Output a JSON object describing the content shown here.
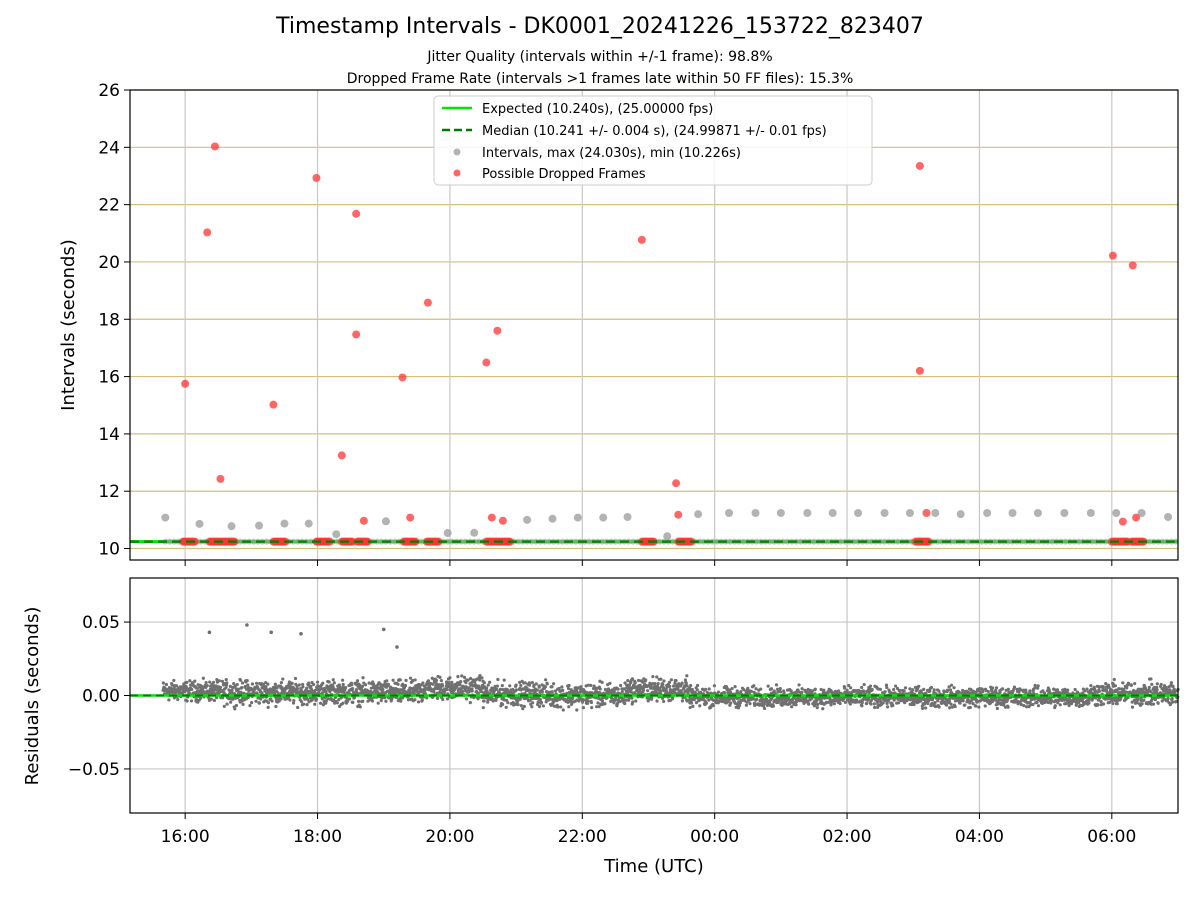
{
  "header": {
    "title": "Timestamp Intervals - DK0001_20241226_153722_823407",
    "subtitle1": "Jitter Quality (intervals within +/-1 frame): 98.8%",
    "subtitle2": "Dropped Frame Rate (intervals >1 frames late within 50 FF files): 15.3%"
  },
  "colors": {
    "expected": "#00e600",
    "median": "#007a00",
    "intervals": "#999999",
    "dropped": "#ff3333",
    "residuals": "#707070",
    "hgrid_top": "#d4bf7a",
    "grid": "#c8c8c8"
  },
  "chart_data": [
    {
      "type": "scatter",
      "ylabel": "Intervals (seconds)",
      "xlim": [
        "15:10",
        "07:00"
      ],
      "ylim": [
        9.6,
        26
      ],
      "yticks": [
        10,
        12,
        14,
        16,
        18,
        20,
        22,
        24,
        26
      ],
      "xticks": [
        "16:00",
        "18:00",
        "20:00",
        "22:00",
        "00:00",
        "02:00",
        "04:00",
        "06:00"
      ],
      "grid": true,
      "legend_position": "upper-center",
      "lines": {
        "expected": {
          "label": "Expected (10.240s), (25.00000 fps)",
          "y": 10.24
        },
        "median": {
          "label": "Median (10.241 +/- 0.004 s), (24.99871 +/- 0.01 fps)",
          "y": 10.241
        }
      },
      "series": [
        {
          "name": "Intervals, max (24.030s), min (10.226s)",
          "points": [
            [
              "15:42",
              11.08
            ],
            [
              "16:13",
              10.86
            ],
            [
              "16:42",
              10.78
            ],
            [
              "17:07",
              10.8
            ],
            [
              "17:30",
              10.87
            ],
            [
              "17:52",
              10.87
            ],
            [
              "18:17",
              10.5
            ],
            [
              "19:02",
              10.95
            ],
            [
              "19:58",
              10.54
            ],
            [
              "20:22",
              10.55
            ],
            [
              "21:10",
              11.0
            ],
            [
              "21:33",
              11.04
            ],
            [
              "21:56",
              11.08
            ],
            [
              "22:19",
              11.08
            ],
            [
              "22:41",
              11.1
            ],
            [
              "23:17",
              10.43
            ],
            [
              "23:45",
              11.2
            ],
            [
              "00:13",
              11.24
            ],
            [
              "00:37",
              11.24
            ],
            [
              "01:00",
              11.24
            ],
            [
              "01:24",
              11.24
            ],
            [
              "01:47",
              11.24
            ],
            [
              "02:10",
              11.24
            ],
            [
              "02:34",
              11.24
            ],
            [
              "02:57",
              11.24
            ],
            [
              "03:20",
              11.24
            ],
            [
              "03:43",
              11.2
            ],
            [
              "04:07",
              11.24
            ],
            [
              "04:30",
              11.24
            ],
            [
              "04:53",
              11.24
            ],
            [
              "05:17",
              11.24
            ],
            [
              "05:41",
              11.24
            ],
            [
              "06:04",
              11.24
            ],
            [
              "06:27",
              11.24
            ],
            [
              "06:51",
              11.1
            ]
          ]
        },
        {
          "name": "Possible Dropped Frames",
          "points": [
            [
              "16:00",
              15.75
            ],
            [
              "16:20",
              21.03
            ],
            [
              "16:27",
              24.03
            ],
            [
              "16:32",
              12.43
            ],
            [
              "17:20",
              15.02
            ],
            [
              "17:59",
              22.93
            ],
            [
              "18:22",
              13.25
            ],
            [
              "18:35",
              21.68
            ],
            [
              "18:35",
              17.47
            ],
            [
              "18:42",
              10.97
            ],
            [
              "19:17",
              15.97
            ],
            [
              "19:24",
              11.08
            ],
            [
              "19:40",
              18.58
            ],
            [
              "20:33",
              16.49
            ],
            [
              "20:38",
              11.08
            ],
            [
              "20:43",
              17.6
            ],
            [
              "20:48",
              10.97
            ],
            [
              "22:54",
              20.77
            ],
            [
              "23:25",
              12.28
            ],
            [
              "23:27",
              11.18
            ],
            [
              "03:06",
              23.35
            ],
            [
              "03:06",
              16.2
            ],
            [
              "03:12",
              11.24
            ],
            [
              "06:01",
              20.22
            ],
            [
              "06:10",
              10.94
            ],
            [
              "06:19",
              19.88
            ],
            [
              "06:22",
              11.08
            ]
          ],
          "clusters_at_10_24": [
            [
              "15:58",
              "16:10"
            ],
            [
              "16:22",
              "16:45"
            ],
            [
              "17:20",
              "17:31"
            ],
            [
              "17:59",
              "18:12"
            ],
            [
              "18:22",
              "18:32"
            ],
            [
              "18:36",
              "18:46"
            ],
            [
              "19:18",
              "19:30"
            ],
            [
              "19:39",
              "19:50"
            ],
            [
              "20:33",
              "20:55"
            ],
            [
              "22:54",
              "23:06"
            ],
            [
              "23:27",
              "23:40"
            ],
            [
              "03:02",
              "03:15"
            ],
            [
              "06:00",
              "06:15"
            ],
            [
              "06:18",
              "06:30"
            ]
          ]
        }
      ]
    },
    {
      "type": "scatter",
      "xlabel": "Time (UTC)",
      "ylabel": "Residuals (seconds)",
      "ylim": [
        -0.08,
        0.08
      ],
      "yticks": [
        "−0.05",
        "0.00",
        "0.05"
      ],
      "xticks": [
        "16:00",
        "18:00",
        "20:00",
        "22:00",
        "00:00",
        "02:00",
        "04:00",
        "06:00"
      ],
      "grid": true,
      "outliers": [
        [
          "16:22",
          0.043
        ],
        [
          "16:56",
          0.048
        ],
        [
          "17:18",
          0.043
        ],
        [
          "17:45",
          0.042
        ],
        [
          "19:00",
          0.045
        ],
        [
          "19:12",
          0.033
        ]
      ],
      "bands": [
        {
          "from": "15:40",
          "to": "16:30",
          "mean": 0.003,
          "spread": 0.005
        },
        {
          "from": "16:30",
          "to": "17:00",
          "mean": 0.002,
          "spread": 0.006
        },
        {
          "from": "17:00",
          "to": "18:45",
          "mean": 0.002,
          "spread": 0.006
        },
        {
          "from": "18:45",
          "to": "19:35",
          "mean": 0.002,
          "spread": 0.006
        },
        {
          "from": "19:35",
          "to": "20:30",
          "mean": 0.005,
          "spread": 0.006
        },
        {
          "from": "20:30",
          "to": "21:30",
          "mean": 0.001,
          "spread": 0.006
        },
        {
          "from": "21:30",
          "to": "22:40",
          "mean": 0.0,
          "spread": 0.006
        },
        {
          "from": "22:40",
          "to": "23:35",
          "mean": 0.004,
          "spread": 0.006
        },
        {
          "from": "23:35",
          "to": "02:00",
          "mean": -0.001,
          "spread": 0.005
        },
        {
          "from": "02:00",
          "to": "05:40",
          "mean": -0.001,
          "spread": 0.005
        },
        {
          "from": "05:40",
          "to": "07:00",
          "mean": 0.001,
          "spread": 0.006
        }
      ]
    }
  ]
}
